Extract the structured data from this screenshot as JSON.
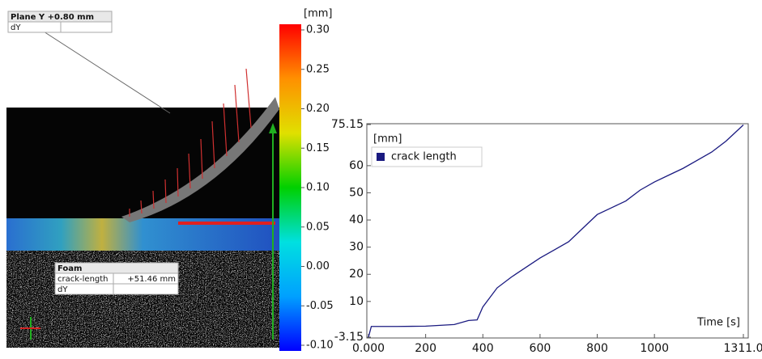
{
  "chart_data": [
    {
      "type": "colorbar",
      "label": "[mm]",
      "colors": [
        "#0000ff",
        "#00a0ff",
        "#00e0e0",
        "#00d000",
        "#e0e000",
        "#ff9000",
        "#ff0000"
      ],
      "ylim": [
        -0.1,
        0.3
      ],
      "yticks": [
        {
          "value": 0.3,
          "label": "0.30"
        },
        0.25,
        {
          "value": 0.2,
          "label": "0.20"
        },
        0.15,
        {
          "value": 0.1,
          "label": "0.10"
        },
        0.05,
        {
          "value": 0,
          "label": "0.00"
        },
        -0.05,
        {
          "value": -0.1,
          "label": "-0.10"
        }
      ]
    },
    {
      "type": "line",
      "y_label": "[mm]",
      "x_label": "Time [s]",
      "x": [
        0,
        10,
        100,
        200,
        300,
        350,
        380,
        400,
        450,
        500,
        550,
        600,
        650,
        700,
        750,
        800,
        850,
        900,
        950,
        1000,
        1050,
        1100,
        1150,
        1200,
        1250,
        1311
      ],
      "series": [
        {
          "name": "crack length",
          "color": "#1a1a80",
          "values": [
            -3.15,
            0.8,
            0.8,
            0.9,
            1.5,
            3,
            3.2,
            8,
            15,
            19,
            22.5,
            26,
            29,
            32,
            37,
            42,
            44.5,
            47,
            51,
            54,
            56.5,
            59,
            62,
            65,
            69,
            75
          ]
        }
      ],
      "xlim": [
        0,
        1311
      ],
      "xticks": [
        {
          "value": 0,
          "label": "0.000"
        },
        200,
        400,
        600,
        800,
        1000,
        {
          "value": 1311,
          "label": "1311.0"
        }
      ],
      "ylim": [
        -3.15,
        75.15
      ],
      "yticks": [
        -3.15,
        10,
        20,
        30,
        40,
        50,
        60,
        75.15
      ]
    }
  ],
  "overlay": {
    "plane_title": "Plane Y +0.80 mm",
    "plane_row": "dY",
    "foam_title": "Foam",
    "foam_rows": [
      [
        "crack-length",
        "+51.46 mm"
      ],
      [
        "dY",
        ""
      ]
    ]
  }
}
